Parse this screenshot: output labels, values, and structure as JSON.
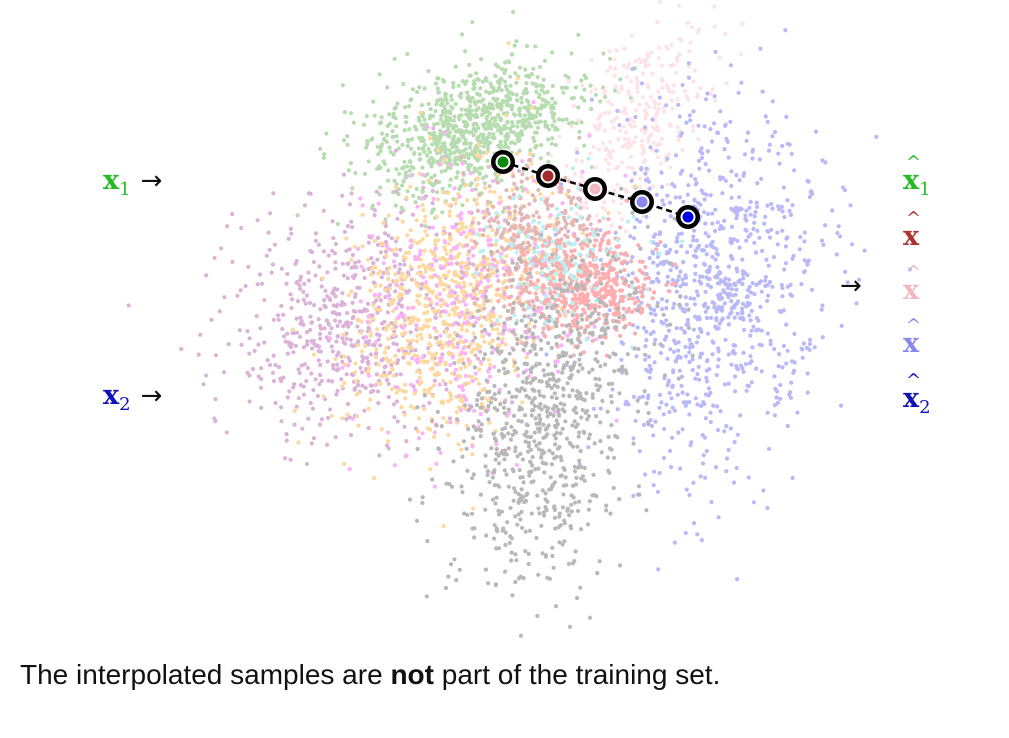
{
  "inputs": {
    "x1": {
      "symbol": "x",
      "subscript": "1",
      "color": "#22bb22"
    },
    "x2": {
      "symbol": "x",
      "subscript": "2",
      "color": "#1111bb"
    }
  },
  "outputs": [
    {
      "symbol": "x",
      "subscript": "1",
      "color": "#22bb22"
    },
    {
      "symbol": "x",
      "subscript": "",
      "color": "#aa3333"
    },
    {
      "symbol": "x",
      "subscript": "",
      "color": "#f2b8c0"
    },
    {
      "symbol": "x",
      "subscript": "",
      "color": "#8888ee"
    },
    {
      "symbol": "x",
      "subscript": "2",
      "color": "#1111bb"
    }
  ],
  "arrow_glyph": "→",
  "caption": {
    "before": "The interpolated samples are ",
    "bold": "not",
    "after": " part of the training set."
  },
  "clusters": [
    {
      "name": "green",
      "color": "#b7dcb0"
    },
    {
      "name": "light-pink",
      "color": "#fde3e6"
    },
    {
      "name": "blue",
      "color": "#b9b9f8"
    },
    {
      "name": "purple",
      "color": "#dbb2d8"
    },
    {
      "name": "orange",
      "color": "#fdd9a0"
    },
    {
      "name": "magenta",
      "color": "#fcb2fa"
    },
    {
      "name": "brown",
      "color": "#e5b8b8"
    },
    {
      "name": "red",
      "color": "#ffaeb0"
    },
    {
      "name": "cyan",
      "color": "#b7f2f2"
    },
    {
      "name": "gray",
      "color": "#b8b8b8"
    }
  ],
  "interpolation_points": [
    {
      "name": "x1",
      "fill": "#0a8a0a"
    },
    {
      "name": "mid-1",
      "fill": "#a52a2a"
    },
    {
      "name": "mid-2",
      "fill": "#f2b8c0"
    },
    {
      "name": "mid-3",
      "fill": "#8888ee"
    },
    {
      "name": "x2",
      "fill": "#0000e6"
    }
  ]
}
